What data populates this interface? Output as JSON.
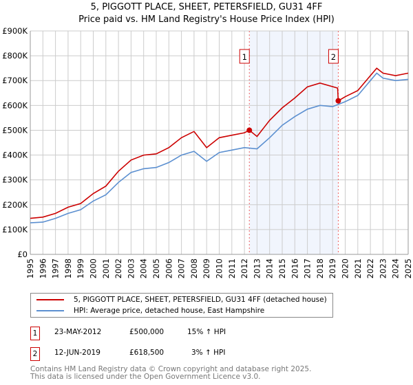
{
  "title_line1": "5, PIGGOTT PLACE, SHEET, PETERSFIELD, GU31 4FF",
  "title_line2": "Price paid vs. HM Land Registry's House Price Index (HPI)",
  "chart_data": {
    "type": "line",
    "xlim": [
      1995,
      2025
    ],
    "ylim": [
      0,
      900000
    ],
    "y_ticks": [
      0,
      100000,
      200000,
      300000,
      400000,
      500000,
      600000,
      700000,
      800000,
      900000
    ],
    "y_tick_labels": [
      "£0",
      "£100K",
      "£200K",
      "£300K",
      "£400K",
      "£500K",
      "£600K",
      "£700K",
      "£800K",
      "£900K"
    ],
    "x_ticks": [
      1995,
      1996,
      1997,
      1998,
      1999,
      2000,
      2001,
      2002,
      2003,
      2004,
      2005,
      2006,
      2007,
      2008,
      2009,
      2010,
      2011,
      2012,
      2013,
      2014,
      2015,
      2016,
      2017,
      2018,
      2019,
      2020,
      2021,
      2022,
      2023,
      2024,
      2025
    ],
    "grid": true,
    "series": [
      {
        "name": "5, PIGGOTT PLACE, SHEET, PETERSFIELD, GU31 4FF (detached house)",
        "color": "#cc0000",
        "x": [
          1995,
          1996,
          1997,
          1998,
          1999,
          2000,
          2001,
          2002,
          2003,
          2004,
          2005,
          2006,
          2007,
          2008,
          2009,
          2010,
          2011,
          2012,
          2012.39,
          2013,
          2014,
          2015,
          2016,
          2017,
          2018,
          2019.4,
          2019.45,
          2020,
          2021,
          2022,
          2022.5,
          2023,
          2024,
          2025
        ],
        "values": [
          145000,
          150000,
          165000,
          190000,
          205000,
          245000,
          275000,
          335000,
          380000,
          400000,
          405000,
          430000,
          470000,
          495000,
          430000,
          470000,
          480000,
          490000,
          500000,
          475000,
          540000,
          590000,
          630000,
          675000,
          690000,
          670000,
          618500,
          635000,
          660000,
          720000,
          750000,
          730000,
          720000,
          730000
        ]
      },
      {
        "name": "HPI: Average price, detached house, East Hampshire",
        "color": "#5b8fd0",
        "x": [
          1995,
          1996,
          1997,
          1998,
          1999,
          2000,
          2001,
          2002,
          2003,
          2004,
          2005,
          2006,
          2007,
          2008,
          2009,
          2010,
          2011,
          2012,
          2013,
          2014,
          2015,
          2016,
          2017,
          2018,
          2019,
          2020,
          2021,
          2022,
          2022.5,
          2023,
          2024,
          2025
        ],
        "values": [
          127000,
          130000,
          145000,
          165000,
          180000,
          215000,
          240000,
          290000,
          330000,
          345000,
          350000,
          370000,
          400000,
          415000,
          375000,
          410000,
          420000,
          430000,
          425000,
          470000,
          520000,
          555000,
          585000,
          600000,
          595000,
          615000,
          640000,
          700000,
          730000,
          710000,
          700000,
          705000
        ]
      }
    ],
    "annotations": [
      {
        "label": "1",
        "x": 2012.39,
        "y": 500000
      },
      {
        "label": "2",
        "x": 2019.45,
        "y": 618500
      }
    ],
    "shaded_range": [
      2012.39,
      2019.45
    ],
    "legend_position": "bottom"
  },
  "legend": {
    "items": [
      "5, PIGGOTT PLACE, SHEET, PETERSFIELD, GU31 4FF (detached house)",
      "HPI: Average price, detached house, East Hampshire"
    ]
  },
  "sales": [
    {
      "num": "1",
      "date": "23-MAY-2012",
      "price": "£500,000",
      "hpi": "15% ↑ HPI"
    },
    {
      "num": "2",
      "date": "12-JUN-2019",
      "price": "£618,500",
      "hpi": "3% ↑ HPI"
    }
  ],
  "footer_line1": "Contains HM Land Registry data © Crown copyright and database right 2025.",
  "footer_line2": "This data is licensed under the Open Government Licence v3.0."
}
